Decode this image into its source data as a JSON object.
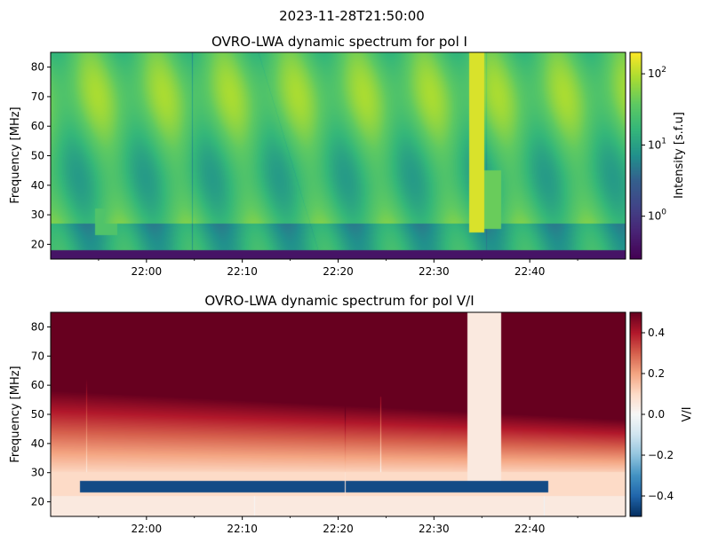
{
  "suptitle": "2023-11-28T21:50:00",
  "chart_data": [
    {
      "type": "heatmap",
      "title": "OVRO-LWA dynamic spectrum for pol I",
      "ylabel": "Frequency [MHz]",
      "xlabel": "",
      "x_start": "21:50:00",
      "x_end": "22:50:00",
      "ylim": [
        15,
        85
      ],
      "x_ticks": [
        "22:00",
        "22:10",
        "22:20",
        "22:30",
        "22:40"
      ],
      "x_tick_minutes": [
        10,
        20,
        30,
        40,
        50
      ],
      "y_ticks": [
        20,
        30,
        40,
        50,
        60,
        70,
        80
      ],
      "colormap": "viridis",
      "color_scale": "log",
      "vmin": 0.25,
      "vmax": 200,
      "colorbar_label": "Intensity [s.f.u]",
      "colorbar_ticks": [
        {
          "value": 1,
          "base": "10",
          "exp": "0"
        },
        {
          "value": 10,
          "base": "10",
          "exp": "1"
        },
        {
          "value": 100,
          "base": "10",
          "exp": "2"
        }
      ],
      "features": [
        {
          "name": "bright broadband burst",
          "t_start_min": 43.7,
          "t_end_min": 45.3,
          "f_low": 24,
          "f_high": 85,
          "intensity": 200
        },
        {
          "name": "low-frequency burst",
          "t_start_min": 45.3,
          "t_end_min": 47.0,
          "f_low": 25,
          "f_high": 45,
          "intensity": 60
        },
        {
          "name": "low-frequency burst",
          "t_start_min": 4.6,
          "t_end_min": 6.9,
          "f_low": 23,
          "f_high": 32,
          "intensity": 40
        }
      ]
    },
    {
      "type": "heatmap",
      "title": "OVRO-LWA dynamic spectrum for pol V/I",
      "ylabel": "Frequency [MHz]",
      "xlabel": "",
      "x_start": "21:50:00",
      "x_end": "22:50:00",
      "ylim": [
        15,
        85
      ],
      "x_ticks": [
        "22:00",
        "22:10",
        "22:20",
        "22:30",
        "22:40"
      ],
      "x_tick_minutes": [
        10,
        20,
        30,
        40,
        50
      ],
      "y_ticks": [
        20,
        30,
        40,
        50,
        60,
        70,
        80
      ],
      "colormap": "RdBu_r",
      "color_scale": "linear",
      "vmin": -0.5,
      "vmax": 0.5,
      "colorbar_label": "V/I",
      "colorbar_ticks": [
        {
          "value": 0.4,
          "label": "0.4"
        },
        {
          "value": 0.2,
          "label": "0.2"
        },
        {
          "value": 0.0,
          "label": "0.0"
        },
        {
          "value": -0.2,
          "label": "−0.2"
        },
        {
          "value": -0.4,
          "label": "−0.4"
        }
      ],
      "features": [
        {
          "name": "unpolarized burst",
          "t_start_min": 43.5,
          "t_end_min": 47.0,
          "f_low": 25,
          "f_high": 85,
          "value": 0.0
        },
        {
          "name": "negative polarization band",
          "t_start_min": 3.0,
          "t_end_min": 52.0,
          "f_low": 23,
          "f_high": 27,
          "value": -0.45
        }
      ]
    }
  ]
}
